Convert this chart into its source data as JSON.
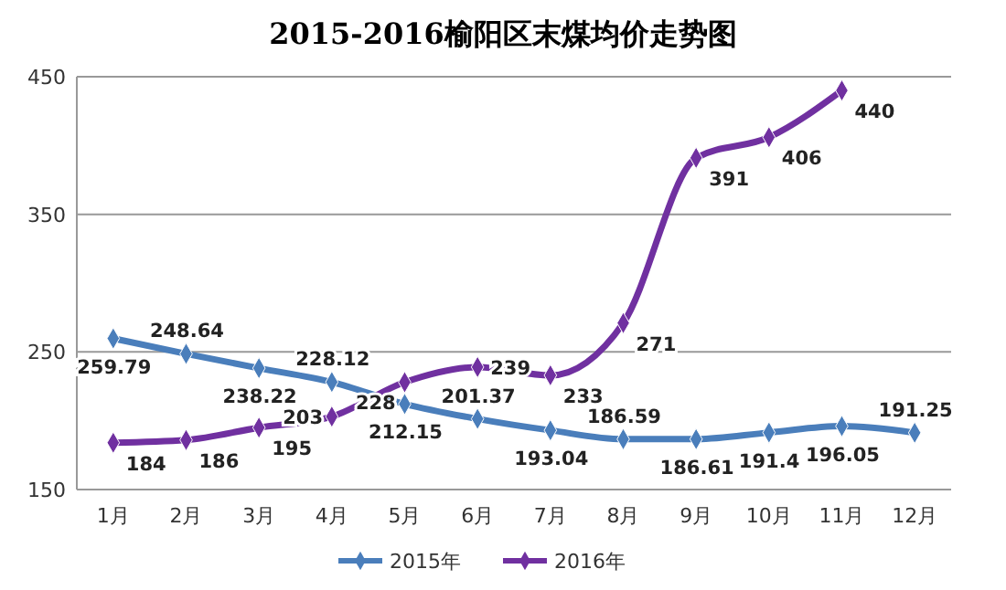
{
  "chart_data": {
    "type": "line",
    "title": "2015-2016榆阳区末煤均价走势图",
    "categories": [
      "1月",
      "2月",
      "3月",
      "4月",
      "5月",
      "6月",
      "7月",
      "8月",
      "9月",
      "10月",
      "11月",
      "12月"
    ],
    "series": [
      {
        "name": "2015年",
        "color": "#4a7ebb",
        "values": [
          259.79,
          248.64,
          238.22,
          228.12,
          212.15,
          201.37,
          193.04,
          186.59,
          186.61,
          191.4,
          196.05,
          191.25
        ]
      },
      {
        "name": "2016年",
        "color": "#7030a0",
        "values": [
          184,
          186,
          195,
          203,
          228,
          239,
          233,
          271,
          391,
          406,
          440,
          null
        ]
      }
    ],
    "ylim": [
      150,
      450
    ],
    "yticks": [
      150,
      250,
      350,
      450
    ],
    "grid": "y",
    "legend": "bottom",
    "marker": "diamond",
    "data_labels": true
  }
}
